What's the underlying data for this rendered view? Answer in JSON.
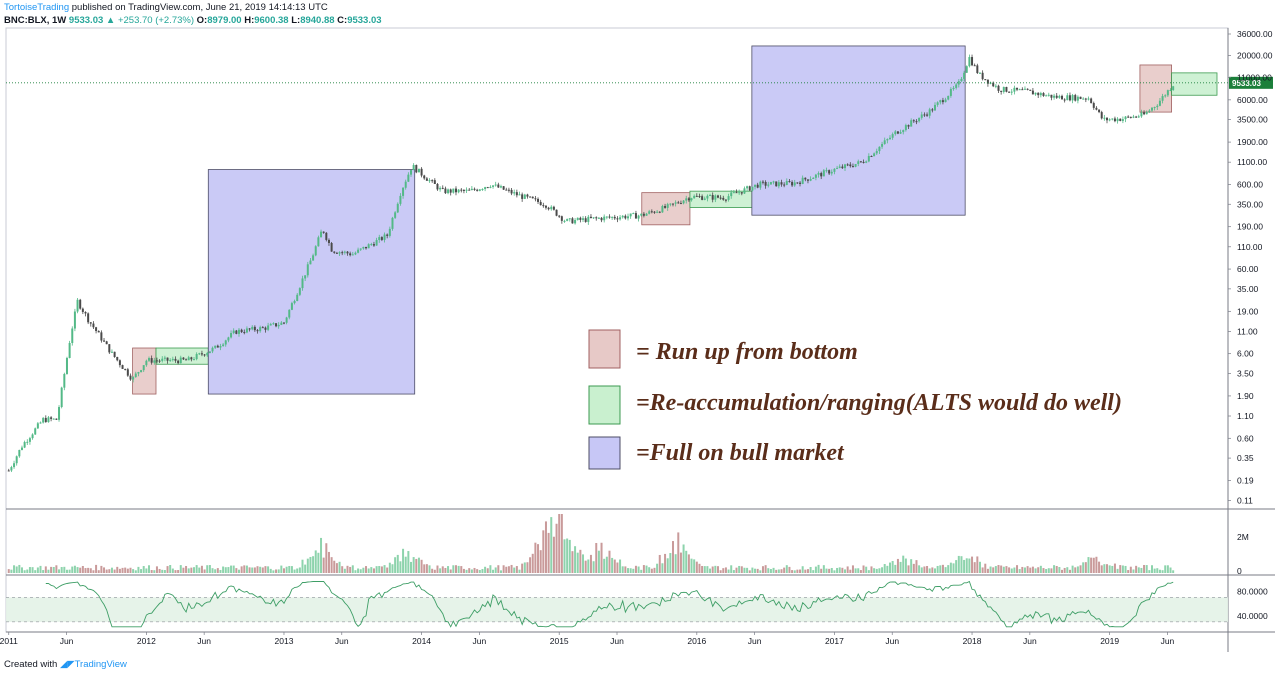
{
  "header": {
    "author": "TortoiseTrading",
    "published": "published on TradingView.com, June 21, 2019 14:14:13 UTC",
    "symbol": "BNC:BLX, 1W",
    "price": "9533.03",
    "change": "▲ +253.70 (+2.73%)",
    "o_label": "O:",
    "o_value": "8979.00",
    "h_label": "H:",
    "h_value": "9600.38",
    "l_label": "L:",
    "l_value": "8940.88",
    "c_label": "C:",
    "c_value": "9533.03"
  },
  "footer": {
    "created_with": "Created with",
    "brand": "TradingView"
  },
  "legend": {
    "runup": "= Run up from bottom",
    "reaccum": "=Re-accumulation/ranging(ALTS would do well)",
    "bull": "=Full on bull market"
  },
  "colors": {
    "runup_fill": "#e7c9c7",
    "runup_stroke": "#a06060",
    "reaccum_fill": "#c9f0cf",
    "reaccum_stroke": "#3c9a50",
    "bull_fill": "#c7c7f6",
    "bull_stroke": "#4c4c66",
    "legend_text": "#5a2d1a",
    "up_candle": "#53b987",
    "down_candle": "#4a4a4a",
    "rsi_line": "#3e9e66",
    "price_tag": "#1b7f3a"
  },
  "chart_data": {
    "type": "candlestick",
    "symbol": "BNC:BLX",
    "interval": "1W",
    "scale": "log",
    "last_price": "9533.03",
    "price_axis_ticks": [
      "36000.00",
      "20000.00",
      "11000.00",
      "6000.00",
      "3500.00",
      "1900.00",
      "1100.00",
      "600.00",
      "350.00",
      "190.00",
      "110.00",
      "60.00",
      "35.00",
      "19.00",
      "11.00",
      "6.00",
      "3.50",
      "1.90",
      "1.10",
      "0.60",
      "0.35",
      "0.19",
      "0.11"
    ],
    "time_axis_ticks": [
      "2011",
      "Jun",
      "2012",
      "Jun",
      "2013",
      "Jun",
      "2014",
      "Jun",
      "2015",
      "Jun",
      "2016",
      "Jun",
      "2017",
      "Jun",
      "2018",
      "Jun",
      "2019",
      "Jun"
    ],
    "volume_axis_ticks": [
      "2M",
      "0"
    ],
    "rsi_axis_ticks": [
      "80.0000",
      "40.0000"
    ],
    "rsi_band": [
      30,
      70
    ],
    "price_path": [
      {
        "t": 2011.0,
        "p": 0.25
      },
      {
        "t": 2011.1,
        "p": 0.5
      },
      {
        "t": 2011.25,
        "p": 1.0
      },
      {
        "t": 2011.35,
        "p": 1.0
      },
      {
        "t": 2011.45,
        "p": 10
      },
      {
        "t": 2011.5,
        "p": 25
      },
      {
        "t": 2011.58,
        "p": 15
      },
      {
        "t": 2011.75,
        "p": 6
      },
      {
        "t": 2011.9,
        "p": 3
      },
      {
        "t": 2012.0,
        "p": 5
      },
      {
        "t": 2012.3,
        "p": 5
      },
      {
        "t": 2012.5,
        "p": 7
      },
      {
        "t": 2012.65,
        "p": 11
      },
      {
        "t": 2012.85,
        "p": 12
      },
      {
        "t": 2013.0,
        "p": 14
      },
      {
        "t": 2013.2,
        "p": 80
      },
      {
        "t": 2013.28,
        "p": 180
      },
      {
        "t": 2013.35,
        "p": 100
      },
      {
        "t": 2013.5,
        "p": 90
      },
      {
        "t": 2013.75,
        "p": 150
      },
      {
        "t": 2013.85,
        "p": 500
      },
      {
        "t": 2013.93,
        "p": 1000
      },
      {
        "t": 2014.0,
        "p": 800
      },
      {
        "t": 2014.15,
        "p": 500
      },
      {
        "t": 2014.35,
        "p": 500
      },
      {
        "t": 2014.5,
        "p": 600
      },
      {
        "t": 2014.7,
        "p": 450
      },
      {
        "t": 2014.9,
        "p": 350
      },
      {
        "t": 2015.05,
        "p": 220
      },
      {
        "t": 2015.3,
        "p": 240
      },
      {
        "t": 2015.6,
        "p": 260
      },
      {
        "t": 2015.8,
        "p": 330
      },
      {
        "t": 2015.95,
        "p": 430
      },
      {
        "t": 2016.2,
        "p": 420
      },
      {
        "t": 2016.45,
        "p": 600
      },
      {
        "t": 2016.7,
        "p": 620
      },
      {
        "t": 2017.0,
        "p": 900
      },
      {
        "t": 2017.2,
        "p": 1100
      },
      {
        "t": 2017.45,
        "p": 2500
      },
      {
        "t": 2017.7,
        "p": 4500
      },
      {
        "t": 2017.9,
        "p": 9000
      },
      {
        "t": 2017.98,
        "p": 19000
      },
      {
        "t": 2018.05,
        "p": 12000
      },
      {
        "t": 2018.2,
        "p": 8000
      },
      {
        "t": 2018.4,
        "p": 7500
      },
      {
        "t": 2018.6,
        "p": 6500
      },
      {
        "t": 2018.85,
        "p": 6300
      },
      {
        "t": 2018.95,
        "p": 3500
      },
      {
        "t": 2019.1,
        "p": 3600
      },
      {
        "t": 2019.25,
        "p": 4000
      },
      {
        "t": 2019.35,
        "p": 5500
      },
      {
        "t": 2019.47,
        "p": 9533
      }
    ],
    "zones": [
      {
        "kind": "runup",
        "t0": 2011.9,
        "t1": 2012.07,
        "p0": 2.0,
        "p1": 7.0
      },
      {
        "kind": "reaccum",
        "t0": 2012.07,
        "t1": 2012.45,
        "p0": 4.5,
        "p1": 7.0
      },
      {
        "kind": "bull",
        "t0": 2012.45,
        "t1": 2013.95,
        "p0": 2.0,
        "p1": 900
      },
      {
        "kind": "runup",
        "t0": 2015.6,
        "t1": 2015.95,
        "p0": 200,
        "p1": 480
      },
      {
        "kind": "reaccum",
        "t0": 2015.95,
        "t1": 2016.4,
        "p0": 320,
        "p1": 500
      },
      {
        "kind": "bull",
        "t0": 2016.4,
        "t1": 2017.95,
        "p0": 260,
        "p1": 26000
      },
      {
        "kind": "runup",
        "t0": 2019.22,
        "t1": 2019.45,
        "p0": 4300,
        "p1": 15500
      },
      {
        "kind": "reaccum",
        "t0": 2019.45,
        "t1": 2019.78,
        "p0": 6800,
        "p1": 12500
      }
    ],
    "volume_peaks": [
      {
        "t": 2013.27,
        "v": 1.1
      },
      {
        "t": 2013.88,
        "v": 0.8
      },
      {
        "t": 2014.9,
        "v": 1.6
      },
      {
        "t": 2015.02,
        "v": 1.9
      },
      {
        "t": 2015.3,
        "v": 1.3
      },
      {
        "t": 2015.85,
        "v": 1.5
      },
      {
        "t": 2017.5,
        "v": 0.6
      },
      {
        "t": 2017.95,
        "v": 0.7
      },
      {
        "t": 2018.9,
        "v": 0.5
      }
    ]
  }
}
